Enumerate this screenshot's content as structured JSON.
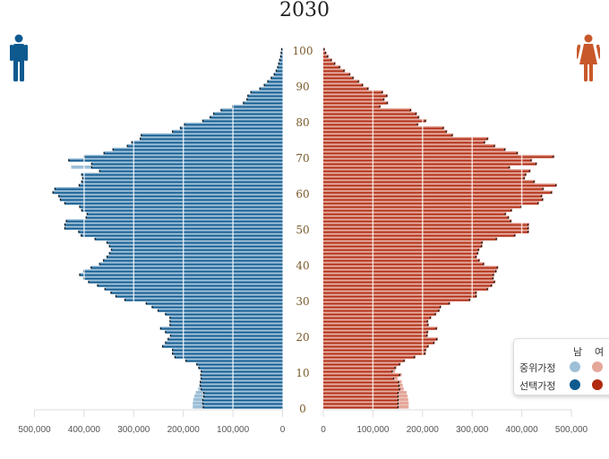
{
  "title": "2030",
  "legend": {
    "col_male": "남",
    "col_female": "여",
    "row_median": "중위가정",
    "row_selected": "선택가정"
  },
  "colors": {
    "male_median": "#9dbfd8",
    "male_selected": "#0e5a8f",
    "female_median": "#e4a79a",
    "female_selected": "#b02a10",
    "male_icon": "#0e5a8f",
    "female_icon": "#c8582a"
  },
  "chart_data": {
    "type": "bar",
    "subtype": "population-pyramid",
    "title": "2030",
    "value_scale": 1000,
    "ages": "0-100",
    "age_ticks": [
      "0",
      "10",
      "20",
      "30",
      "40",
      "50",
      "60",
      "70",
      "80",
      "90",
      "100"
    ],
    "x_ticks_male": [
      "500,000",
      "400,000",
      "300,000",
      "200,000",
      "100,000",
      "0"
    ],
    "x_ticks_female": [
      "0",
      "100,000",
      "200,000",
      "300,000",
      "400,000",
      "500,000"
    ],
    "xlim": [
      0,
      500000
    ],
    "grid": true,
    "legend_placement": "bottom-right",
    "series": [
      {
        "name": "남 선택가정",
        "values": [
          159,
          160,
          160,
          158,
          158,
          163,
          165,
          165,
          163,
          164,
          163,
          168,
          172,
          194,
          216,
          221,
          221,
          241,
          235,
          230,
          225,
          235,
          245,
          226,
          226,
          226,
          235,
          250,
          262,
          274,
          317,
          335,
          345,
          357,
          372,
          390,
          400,
          408,
          400,
          385,
          368,
          360,
          353,
          348,
          344,
          348,
          353,
          377,
          405,
          410,
          438,
          438,
          435,
          395,
          393,
          404,
          408,
          438,
          447,
          450,
          462,
          458,
          409,
          404,
          402,
          404,
          368,
          384,
          384,
          430,
          399,
          359,
          341,
          312,
          303,
          286,
          284,
          221,
          205,
          197,
          160,
          145,
          138,
          123,
          100,
          78,
          71,
          69,
          63,
          45,
          36,
          29,
          22,
          16,
          12,
          9,
          7,
          5,
          3,
          2,
          1
        ]
      },
      {
        "name": "남 중위가정",
        "values": [
          181,
          181,
          180,
          178,
          175,
          170,
          168,
          167,
          166,
          165,
          165,
          170,
          174,
          196,
          218,
          223,
          223,
          243,
          237,
          232,
          227,
          237,
          247,
          228,
          228,
          228,
          237,
          252,
          264,
          276,
          319,
          337,
          347,
          359,
          374,
          392,
          402,
          410,
          402,
          387,
          370,
          362,
          355,
          350,
          346,
          350,
          355,
          379,
          407,
          412,
          440,
          440,
          437,
          397,
          395,
          406,
          410,
          440,
          449,
          452,
          464,
          460,
          411,
          406,
          404,
          406,
          370,
          426,
          386,
          432,
          401,
          361,
          343,
          314,
          305,
          288,
          286,
          223,
          207,
          199,
          162,
          147,
          140,
          125,
          102,
          80,
          73,
          71,
          65,
          47,
          38,
          31,
          24,
          18,
          14,
          11,
          9,
          7,
          5,
          4,
          2
        ]
      },
      {
        "name": "여 선택가정",
        "values": [
          150,
          150,
          150,
          150,
          150,
          153,
          152,
          151,
          141,
          153,
          138,
          144,
          153,
          162,
          183,
          204,
          205,
          210,
          222,
          228,
          208,
          209,
          227,
          210,
          209,
          215,
          225,
          232,
          235,
          253,
          294,
          307,
          307,
          330,
          338,
          344,
          341,
          342,
          347,
          350,
          322,
          313,
          307,
          310,
          312,
          318,
          319,
          348,
          385,
          412,
          412,
          412,
          377,
          372,
          366,
          378,
          398,
          432,
          441,
          439,
          459,
          442,
          468,
          424,
          404,
          407,
          415,
          374,
          428,
          418,
          463,
          390,
          365,
          344,
          324,
          330,
          259,
          247,
          241,
          189,
          205,
          191,
          186,
          175,
          113,
          128,
          121,
          127,
          118,
          89,
          78,
          70,
          59,
          52,
          41,
          32,
          22,
          15,
          8,
          4,
          1
        ]
      },
      {
        "name": "여 중위가정",
        "values": [
          172,
          172,
          171,
          170,
          168,
          162,
          160,
          158,
          150,
          158,
          145,
          148,
          156,
          165,
          186,
          207,
          208,
          213,
          225,
          231,
          211,
          212,
          230,
          213,
          212,
          218,
          228,
          235,
          238,
          256,
          297,
          310,
          310,
          333,
          341,
          347,
          344,
          345,
          350,
          353,
          325,
          316,
          310,
          313,
          315,
          321,
          322,
          351,
          388,
          415,
          415,
          415,
          380,
          375,
          369,
          381,
          401,
          435,
          444,
          442,
          462,
          445,
          471,
          427,
          407,
          410,
          418,
          377,
          431,
          421,
          466,
          393,
          368,
          347,
          327,
          333,
          262,
          250,
          244,
          192,
          208,
          194,
          189,
          178,
          116,
          131,
          124,
          130,
          121,
          92,
          81,
          73,
          62,
          55,
          44,
          35,
          25,
          18,
          11,
          6,
          3
        ]
      }
    ]
  }
}
